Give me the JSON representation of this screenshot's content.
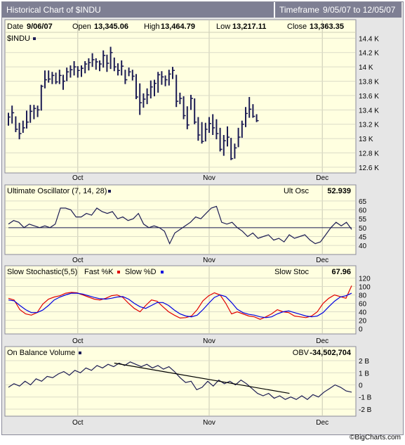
{
  "header": {
    "title": "Historical Chart of $INDU",
    "timeframe_label": "Timeframe",
    "timeframe_start": "9/05/07",
    "timeframe_to": "to",
    "timeframe_end": "12/05/07"
  },
  "info": {
    "date_label": "Date",
    "date_value": "9/06/07",
    "open_label": "Open",
    "open_value": "13,345.06",
    "high_label": "High",
    "high_value": "13,464.79",
    "low_label": "Low",
    "low_value": "13,217.11",
    "close_label": "Close",
    "close_value": "13,363.35"
  },
  "footer": {
    "credit": "©BigCharts.com"
  },
  "colors": {
    "panel_bg": "#ffffe0",
    "price_bars": "#1c1c54",
    "fast_k": "#e00000",
    "slow_d": "#0000e0",
    "indicator_line": "#1c1c54",
    "obv_line": "#1c1c54",
    "trend_line": "#000000"
  },
  "chart_data": [
    {
      "type": "ohlc",
      "series_label": "$INDU",
      "x_tick_labels": [
        "Oct",
        "Nov",
        "Dec"
      ],
      "y_tick_labels": [
        "14.4 K",
        "14.2 K",
        "14 K",
        "13.8 K",
        "13.6 K",
        "13.4 K",
        "13.2 K",
        "13 K",
        "12.8 K",
        "12.6 K"
      ],
      "y_ticks": [
        14400,
        14200,
        14000,
        13800,
        13600,
        13400,
        13200,
        13000,
        12800,
        12600
      ],
      "ylim": [
        12560,
        14560
      ],
      "x_tick_index": [
        19,
        55,
        86
      ],
      "bars": [
        {
          "high": 13360,
          "low": 13180,
          "close": 13300
        },
        {
          "high": 13460,
          "low": 13210,
          "close": 13360
        },
        {
          "high": 13310,
          "low": 13090,
          "close": 13130
        },
        {
          "high": 13220,
          "low": 12990,
          "close": 13070
        },
        {
          "high": 13250,
          "low": 13080,
          "close": 13150
        },
        {
          "high": 13390,
          "low": 13140,
          "close": 13230
        },
        {
          "high": 13470,
          "low": 13220,
          "close": 13380
        },
        {
          "high": 13470,
          "low": 13270,
          "close": 13420
        },
        {
          "high": 13460,
          "low": 13300,
          "close": 13400
        },
        {
          "high": 13750,
          "low": 13390,
          "close": 13730
        },
        {
          "high": 13950,
          "low": 13700,
          "close": 13820
        },
        {
          "high": 13950,
          "low": 13780,
          "close": 13830
        },
        {
          "high": 13930,
          "low": 13760,
          "close": 13880
        },
        {
          "high": 13920,
          "low": 13760,
          "close": 13790
        },
        {
          "high": 13960,
          "low": 13760,
          "close": 13880
        },
        {
          "high": 13890,
          "low": 13680,
          "close": 13800
        },
        {
          "high": 13990,
          "low": 13800,
          "close": 13930
        },
        {
          "high": 14020,
          "low": 13850,
          "close": 13960
        },
        {
          "high": 14080,
          "low": 13880,
          "close": 14000
        },
        {
          "high": 14010,
          "low": 13850,
          "close": 13950
        },
        {
          "high": 14020,
          "low": 13860,
          "close": 13980
        },
        {
          "high": 14080,
          "low": 13910,
          "close": 14040
        },
        {
          "high": 14120,
          "low": 13950,
          "close": 14060
        },
        {
          "high": 14190,
          "low": 14000,
          "close": 14100
        },
        {
          "high": 14120,
          "low": 13960,
          "close": 14070
        },
        {
          "high": 14090,
          "low": 13940,
          "close": 14040
        },
        {
          "high": 14230,
          "low": 13990,
          "close": 14160
        },
        {
          "high": 14170,
          "low": 13930,
          "close": 14050
        },
        {
          "high": 14280,
          "low": 13970,
          "close": 14200
        },
        {
          "high": 14130,
          "low": 13940,
          "close": 14000
        },
        {
          "high": 14050,
          "low": 13880,
          "close": 13950
        },
        {
          "high": 14090,
          "low": 13880,
          "close": 14010
        },
        {
          "high": 13960,
          "low": 13760,
          "close": 13820
        },
        {
          "high": 13990,
          "low": 13870,
          "close": 13930
        },
        {
          "high": 13960,
          "low": 13810,
          "close": 13870
        },
        {
          "high": 13900,
          "low": 13550,
          "close": 13580
        },
        {
          "high": 13770,
          "low": 13330,
          "close": 13500
        },
        {
          "high": 13630,
          "low": 13430,
          "close": 13550
        },
        {
          "high": 13700,
          "low": 13480,
          "close": 13610
        },
        {
          "high": 13810,
          "low": 13560,
          "close": 13720
        },
        {
          "high": 13820,
          "low": 13590,
          "close": 13770
        },
        {
          "high": 13930,
          "low": 13640,
          "close": 13890
        },
        {
          "high": 13940,
          "low": 13750,
          "close": 13860
        },
        {
          "high": 13880,
          "low": 13730,
          "close": 13820
        },
        {
          "high": 13960,
          "low": 13740,
          "close": 13900
        },
        {
          "high": 14000,
          "low": 13830,
          "close": 13950
        },
        {
          "high": 13890,
          "low": 13440,
          "close": 13520
        },
        {
          "high": 13640,
          "low": 13480,
          "close": 13560
        },
        {
          "high": 13590,
          "low": 13270,
          "close": 13320
        },
        {
          "high": 13450,
          "low": 13130,
          "close": 13190
        },
        {
          "high": 13610,
          "low": 13400,
          "close": 13560
        },
        {
          "high": 13560,
          "low": 13200,
          "close": 13230
        },
        {
          "high": 13300,
          "low": 12970,
          "close": 13050
        },
        {
          "high": 13230,
          "low": 12930,
          "close": 12960
        },
        {
          "high": 13220,
          "low": 12960,
          "close": 13130
        },
        {
          "high": 13300,
          "low": 13080,
          "close": 13210
        },
        {
          "high": 13340,
          "low": 13050,
          "close": 13150
        },
        {
          "high": 13270,
          "low": 12990,
          "close": 13070
        },
        {
          "high": 13150,
          "low": 12820,
          "close": 12850
        },
        {
          "high": 13050,
          "low": 12760,
          "close": 12970
        },
        {
          "high": 13170,
          "low": 12890,
          "close": 13020
        },
        {
          "high": 13010,
          "low": 12700,
          "close": 12720
        },
        {
          "high": 12930,
          "low": 12720,
          "close": 12870
        },
        {
          "high": 13150,
          "low": 12880,
          "close": 13020
        },
        {
          "high": 13250,
          "low": 13010,
          "close": 13200
        },
        {
          "high": 13440,
          "low": 13160,
          "close": 13350
        },
        {
          "high": 13580,
          "low": 13290,
          "close": 13410
        },
        {
          "high": 13480,
          "low": 13290,
          "close": 13310
        },
        {
          "high": 13340,
          "low": 13230,
          "close": 13250
        }
      ]
    },
    {
      "type": "line",
      "title": "Ultimate Oscillator (7, 14, 28)",
      "value_label": "Ult Osc",
      "value": "52.939",
      "x_tick_labels": [
        "Oct",
        "Nov",
        "Dec"
      ],
      "y_tick_labels": [
        "65",
        "60",
        "55",
        "50",
        "45",
        "40"
      ],
      "y_ticks": [
        65,
        60,
        55,
        50,
        45,
        40
      ],
      "ylim": [
        36.5,
        68.5
      ],
      "reference_line": 50,
      "series": [
        {
          "name": "Ultimate Oscillator",
          "values": [
            52,
            54,
            53,
            50,
            52,
            51,
            50,
            51,
            50,
            52,
            61,
            61,
            60,
            56,
            56,
            58,
            57,
            61,
            59,
            58,
            59,
            55,
            56,
            54,
            55,
            58,
            52,
            50,
            51,
            50,
            48,
            41,
            47,
            49,
            51,
            53,
            56,
            55,
            58,
            61,
            62,
            53,
            52,
            53,
            50,
            48,
            45,
            47,
            44,
            45,
            46,
            43,
            44,
            42,
            46,
            44,
            45,
            46,
            43,
            41,
            42,
            46,
            50,
            53,
            51,
            53,
            49
          ]
        }
      ]
    },
    {
      "type": "line",
      "title": "Slow Stochastic(5,5)",
      "value_label": "Slow Stoc",
      "value": "67.96",
      "x_tick_labels": [
        "Oct",
        "Nov",
        "Dec"
      ],
      "y_tick_labels": [
        "120",
        "100",
        "80",
        "60",
        "40",
        "20",
        "0"
      ],
      "y_ticks": [
        120,
        100,
        80,
        60,
        40,
        20,
        0
      ],
      "ylim": [
        -6,
        126
      ],
      "series": [
        {
          "name": "Fast %K",
          "values": [
            72,
            68,
            45,
            35,
            32,
            38,
            58,
            70,
            75,
            78,
            84,
            86,
            85,
            80,
            75,
            70,
            68,
            72,
            78,
            80,
            74,
            60,
            48,
            40,
            55,
            68,
            65,
            52,
            40,
            32,
            25,
            26,
            30,
            45,
            66,
            78,
            85,
            80,
            60,
            35,
            40,
            35,
            30,
            28,
            22,
            28,
            35,
            45,
            40,
            38,
            30,
            28,
            26,
            30,
            40,
            60,
            72,
            80,
            76,
            72,
            102
          ]
        },
        {
          "name": "Slow %D",
          "values": [
            68,
            66,
            55,
            45,
            38,
            38,
            44,
            55,
            68,
            75,
            80,
            84,
            84,
            82,
            78,
            74,
            71,
            70,
            72,
            75,
            76,
            70,
            60,
            52,
            48,
            55,
            62,
            62,
            55,
            44,
            35,
            30,
            28,
            32,
            45,
            60,
            74,
            80,
            76,
            62,
            46,
            38,
            34,
            32,
            28,
            26,
            28,
            35,
            40,
            42,
            38,
            34,
            30,
            28,
            30,
            38,
            52,
            65,
            75,
            78,
            84
          ]
        }
      ]
    },
    {
      "type": "line",
      "title": "On Balance Volume",
      "value_label": "OBV",
      "value": "-34,502,704",
      "x_tick_labels": [
        "Oct",
        "Nov",
        "Dec"
      ],
      "y_tick_labels": [
        "2 B",
        "1 B",
        "0",
        "-1 B",
        "-2 B"
      ],
      "y_ticks": [
        2,
        1,
        0,
        -1,
        -2
      ],
      "ylim": [
        -2.35,
        2.35
      ],
      "series": [
        {
          "name": "On Balance Volume",
          "values": [
            -0.2,
            0.1,
            -0.1,
            0.3,
            0.0,
            0.5,
            0.3,
            0.7,
            0.6,
            0.9,
            1.1,
            0.8,
            1.2,
            1.0,
            1.4,
            1.2,
            1.6,
            1.4,
            1.7,
            1.5,
            1.8,
            1.6,
            1.9,
            1.7,
            1.5,
            1.7,
            1.4,
            1.6,
            1.3,
            1.5,
            1.1,
            0.6,
            0.2,
            0.3,
            -0.4,
            -0.2,
            0.3,
            -0.1,
            0.4,
            0.1,
            0.3,
            0.0,
            0.4,
            0.1,
            -0.3,
            -0.7,
            -0.9,
            -0.7,
            -1.1,
            -0.9,
            -1.2,
            -1.0,
            -1.2,
            -0.9,
            -1.2,
            -0.8,
            -1.0,
            -0.6,
            -0.3,
            0.0,
            -0.2,
            -0.5,
            -0.6
          ]
        }
      ],
      "trend_line": {
        "from_index": 29,
        "from_value": 1.8,
        "to_index": 77,
        "to_value": -0.7
      }
    }
  ]
}
